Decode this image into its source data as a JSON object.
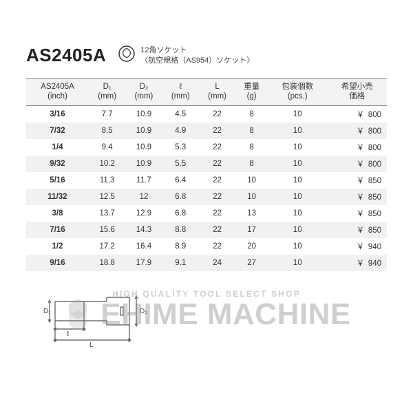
{
  "product": {
    "code": "AS2405A",
    "title_line1": "12角ソケット",
    "title_line2": "〈航空規格（AS954）ソケット〉"
  },
  "table": {
    "columns": [
      {
        "main": "AS2405A",
        "sub": "(inch)"
      },
      {
        "main": "D₁",
        "sub": "(mm)"
      },
      {
        "main": "D₂",
        "sub": "(mm)"
      },
      {
        "main": "ℓ",
        "sub": "(mm)"
      },
      {
        "main": "L",
        "sub": "(mm)"
      },
      {
        "main": "重量",
        "sub": "(g)"
      },
      {
        "main": "包装個数",
        "sub": "(pcs.)"
      },
      {
        "main": "希望小売",
        "sub": "価格"
      }
    ],
    "rows": [
      {
        "size": "3/16",
        "d1": "7.7",
        "d2": "10.9",
        "l": "4.5",
        "L": "22",
        "w": "8",
        "pcs": "10",
        "price": "800"
      },
      {
        "size": "7/32",
        "d1": "8.5",
        "d2": "10.9",
        "l": "4.9",
        "L": "22",
        "w": "8",
        "pcs": "10",
        "price": "800"
      },
      {
        "size": "1/4",
        "d1": "9.4",
        "d2": "10.9",
        "l": "5.3",
        "L": "22",
        "w": "8",
        "pcs": "10",
        "price": "800"
      },
      {
        "size": "9/32",
        "d1": "10.2",
        "d2": "10.9",
        "l": "5.5",
        "L": "22",
        "w": "8",
        "pcs": "10",
        "price": "800"
      },
      {
        "size": "5/16",
        "d1": "11.3",
        "d2": "11.7",
        "l": "6.4",
        "L": "22",
        "w": "10",
        "pcs": "10",
        "price": "850"
      },
      {
        "size": "11/32",
        "d1": "12.5",
        "d2": "12",
        "l": "6.8",
        "L": "22",
        "w": "10",
        "pcs": "10",
        "price": "850"
      },
      {
        "size": "3/8",
        "d1": "13.7",
        "d2": "12.9",
        "l": "6.8",
        "L": "22",
        "w": "13",
        "pcs": "10",
        "price": "850"
      },
      {
        "size": "7/16",
        "d1": "15.6",
        "d2": "14.3",
        "l": "8.8",
        "L": "22",
        "w": "17",
        "pcs": "10",
        "price": "850"
      },
      {
        "size": "1/2",
        "d1": "17.2",
        "d2": "16.4",
        "l": "8.9",
        "L": "22",
        "w": "20",
        "pcs": "10",
        "price": "940"
      },
      {
        "size": "9/16",
        "d1": "18.8",
        "d2": "17.9",
        "l": "9.1",
        "L": "24",
        "w": "27",
        "pcs": "10",
        "price": "940"
      }
    ],
    "currency": "￥",
    "header_bg": "#f3f3f3",
    "row_alt_bg": "#f1f1f1",
    "border_color": "#888"
  },
  "diagram": {
    "labels": {
      "d1": "D₁",
      "d2": "D₂",
      "l": "ℓ",
      "L": "L"
    },
    "stroke": "#555",
    "stroke_width": 1.2
  },
  "watermark": {
    "tagline": "HIGH QUALITY TOOL SELECT SHOP",
    "main": "EHIME MACHINE"
  }
}
